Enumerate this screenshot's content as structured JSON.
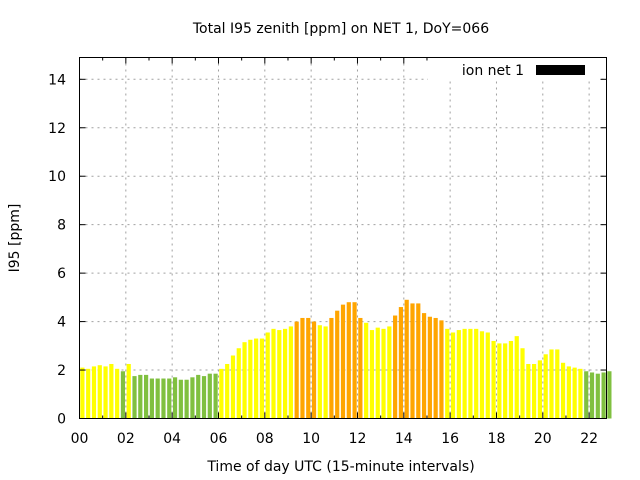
{
  "chart_data": {
    "type": "bar",
    "title": "Total I95 zenith [ppm] on NET 1, DoY=066",
    "xlabel": "Time of day UTC (15-minute intervals)",
    "ylabel": "I95 [ppm]",
    "ylim": [
      0,
      14.9
    ],
    "xlim": [
      0,
      22.75
    ],
    "grid": true,
    "legend": {
      "label": "ion net 1",
      "placement": "top-right",
      "color": "#000000"
    },
    "xticks": [
      "00",
      "02",
      "04",
      "06",
      "08",
      "10",
      "12",
      "14",
      "16",
      "18",
      "20",
      "22"
    ],
    "xtick_values": [
      0,
      2,
      4,
      6,
      8,
      10,
      12,
      14,
      16,
      18,
      20,
      22
    ],
    "yticks": [
      "0",
      "2",
      "4",
      "6",
      "8",
      "10",
      "12",
      "14"
    ],
    "ytick_values": [
      0,
      2,
      4,
      6,
      8,
      10,
      12,
      14
    ],
    "bar_width_hours": 0.25,
    "colors": {
      "low": "#80c040",
      "mid": "#ffff00",
      "high": "#ffa500"
    },
    "thresholds": {
      "low_below": 2.0,
      "high_from": 4.0
    },
    "x_start": 0,
    "values": [
      2.1,
      2.05,
      2.15,
      2.2,
      2.15,
      2.25,
      2.05,
      1.95,
      2.25,
      1.75,
      1.8,
      1.8,
      1.65,
      1.65,
      1.65,
      1.65,
      1.7,
      1.6,
      1.6,
      1.7,
      1.8,
      1.75,
      1.85,
      1.85,
      2.05,
      2.25,
      2.6,
      2.9,
      3.15,
      3.25,
      3.3,
      3.3,
      3.55,
      3.7,
      3.65,
      3.7,
      3.8,
      4.0,
      4.15,
      4.15,
      4.0,
      3.85,
      3.8,
      4.15,
      4.45,
      4.7,
      4.8,
      4.8,
      4.15,
      3.95,
      3.65,
      3.75,
      3.7,
      3.8,
      4.25,
      4.6,
      4.9,
      4.75,
      4.75,
      4.35,
      4.2,
      4.15,
      4.05,
      3.7,
      3.55,
      3.65,
      3.7,
      3.7,
      3.7,
      3.6,
      3.55,
      3.2,
      3.1,
      3.1,
      3.2,
      3.4,
      2.9,
      2.25,
      2.25,
      2.4,
      2.65,
      2.85,
      2.85,
      2.3,
      2.15,
      2.1,
      2.05,
      1.95,
      1.9,
      1.85,
      1.9,
      1.95
    ]
  }
}
